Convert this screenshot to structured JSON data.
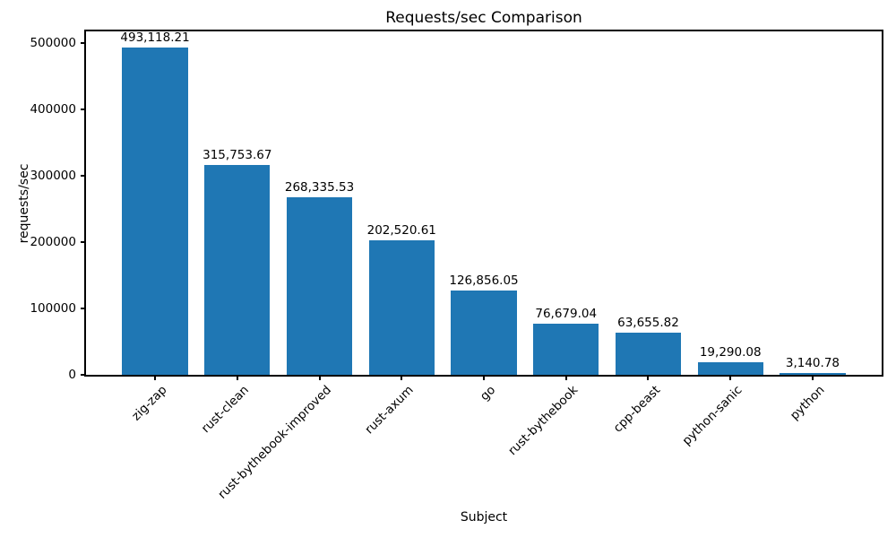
{
  "chart_data": {
    "type": "bar",
    "title": "Requests/sec Comparison",
    "xlabel": "Subject",
    "ylabel": "requests/sec",
    "categories": [
      "zig-zap",
      "rust-clean",
      "rust-bythebook-improved",
      "rust-axum",
      "go",
      "rust-bythebook",
      "cpp-beast",
      "python-sanic",
      "python"
    ],
    "values": [
      493118.21,
      315753.67,
      268335.53,
      202520.61,
      126856.05,
      76679.04,
      63655.82,
      19290.08,
      3140.78
    ],
    "value_labels": [
      "493,118.21",
      "315,753.67",
      "268,335.53",
      "202,520.61",
      "126,856.05",
      "76,679.04",
      "63,655.82",
      "19,290.08",
      "3,140.78"
    ],
    "y_ticks": [
      0,
      100000,
      200000,
      300000,
      400000,
      500000
    ],
    "y_tick_labels": [
      "0",
      "100000",
      "200000",
      "300000",
      "400000",
      "500000"
    ],
    "ylim": [
      0,
      517774
    ],
    "bar_color": "#1f77b4",
    "grid": false,
    "legend": null,
    "x_label_rotation_deg": 45
  }
}
